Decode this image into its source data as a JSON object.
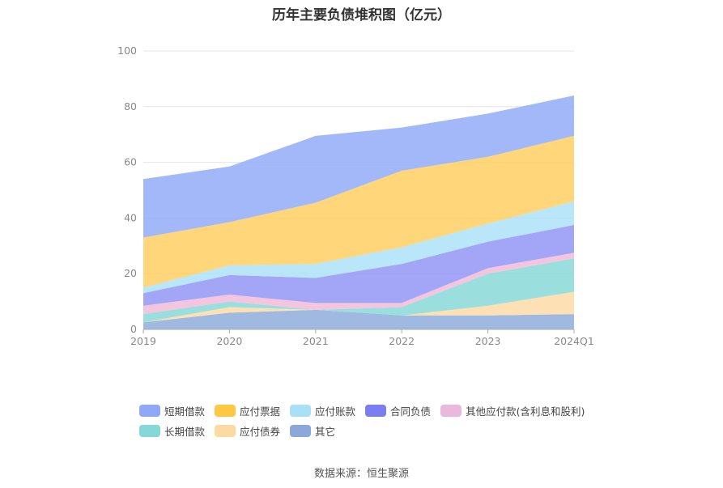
{
  "chart_data": {
    "type": "area",
    "stacked": true,
    "title": "历年主要负债堆积图（亿元）",
    "categories": [
      "2019",
      "2020",
      "2021",
      "2022",
      "2023",
      "2024Q1"
    ],
    "ylim": [
      0,
      100
    ],
    "yticks": [
      0,
      20,
      40,
      60,
      80,
      100
    ],
    "grid": true,
    "legend_position": "bottom",
    "series": [
      {
        "name": "其它",
        "color": "#8aa9d9",
        "values": [
          2.5,
          6,
          7,
          5,
          5,
          5.5
        ]
      },
      {
        "name": "应付债券",
        "color": "#fdd9a3",
        "values": [
          0,
          2,
          0,
          0,
          3.5,
          8
        ]
      },
      {
        "name": "长期借款",
        "color": "#84d8d5",
        "values": [
          3,
          2,
          0,
          3,
          11.5,
          12
        ]
      },
      {
        "name": "其他应付款(含利息和股利)",
        "color": "#f0b8d8",
        "values": [
          3,
          2.5,
          2.5,
          1.5,
          2,
          2
        ]
      },
      {
        "name": "合同负债",
        "color": "#8f93f4",
        "values": [
          4.5,
          7,
          9,
          14,
          9.5,
          10
        ]
      },
      {
        "name": "应付账款",
        "color": "#a9e0f8",
        "values": [
          2,
          3.5,
          5,
          6,
          6.5,
          8.5
        ]
      },
      {
        "name": "应付票据",
        "color": "#ffcd5b",
        "values": [
          18,
          15.5,
          22,
          27.5,
          24,
          23.5
        ]
      },
      {
        "name": "短期借款",
        "color": "#8fa8f8",
        "values": [
          21,
          20,
          24,
          15.5,
          15.5,
          14.5
        ]
      }
    ]
  },
  "legend": {
    "row1": [
      "短期借款",
      "应付票据",
      "应付账款",
      "合同负债",
      "其他应付款(含利息和股利)"
    ],
    "row2": [
      "长期借款",
      "应付债券",
      "其它"
    ],
    "row1_colors": [
      "#8fa8f8",
      "#ffc843",
      "#a9e0f8",
      "#7a7ef2",
      "#eab8dc"
    ],
    "row2_colors": [
      "#84d8d5",
      "#fdd9a3",
      "#8aa9d9"
    ]
  },
  "source": "数据来源：恒生聚源"
}
